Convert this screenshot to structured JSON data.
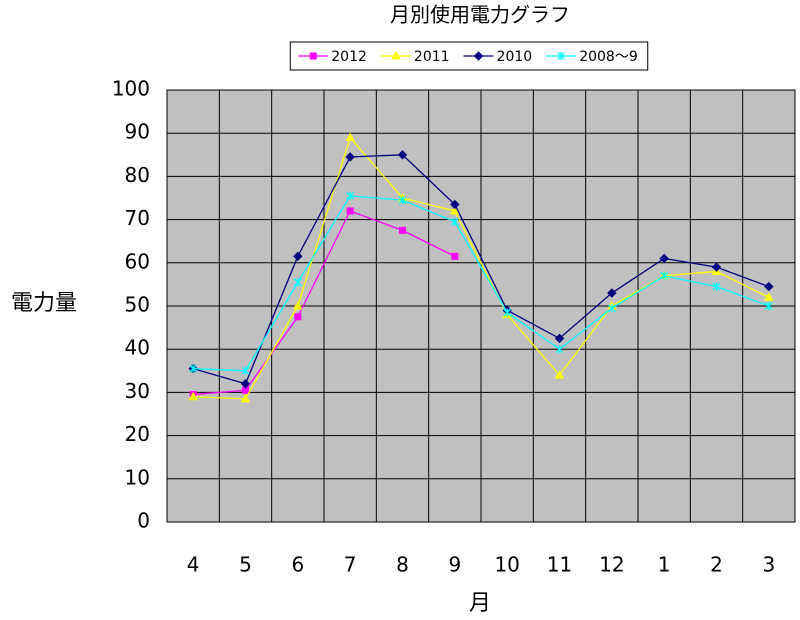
{
  "chart_data": {
    "type": "line",
    "title": "月別使用電力グラフ",
    "x_label": "月",
    "y_label": "電力量",
    "categories": [
      "4",
      "5",
      "6",
      "7",
      "8",
      "9",
      "10",
      "11",
      "12",
      "1",
      "2",
      "3"
    ],
    "series": [
      {
        "name": "2012",
        "color": "#ff00ff",
        "marker": "square",
        "values": [
          29.5,
          30.5,
          47.5,
          72,
          67.5,
          61.5,
          null,
          null,
          null,
          null,
          null,
          null
        ]
      },
      {
        "name": "2011",
        "color": "#ffff00",
        "marker": "triangle",
        "values": [
          29,
          28.5,
          50,
          89,
          75,
          72,
          48,
          34,
          50,
          57,
          58,
          52
        ]
      },
      {
        "name": "2010",
        "color": "#000080",
        "marker": "diamond",
        "values": [
          35.5,
          32,
          61.5,
          84.5,
          85,
          73.5,
          49,
          42.5,
          53,
          61,
          59,
          54.5
        ]
      },
      {
        "name": "2008～9",
        "color": "#00ffff",
        "marker": "star",
        "values": [
          35.5,
          35,
          55.5,
          75.5,
          74.5,
          69.5,
          48.5,
          40,
          49.5,
          57,
          54.5,
          50
        ]
      }
    ],
    "ylim": [
      0,
      100
    ],
    "yticks": [
      0,
      10,
      20,
      30,
      40,
      50,
      60,
      70,
      80,
      90,
      100
    ],
    "grid": true,
    "legend": "top",
    "background": "#c0c0c0"
  }
}
